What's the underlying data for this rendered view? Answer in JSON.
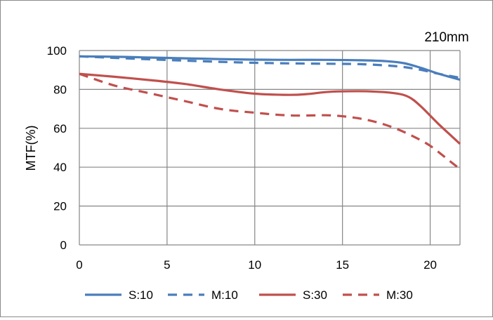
{
  "chart_data": {
    "type": "line",
    "title": "210mm",
    "xlabel": "",
    "ylabel": "MTF(%)",
    "xlim": [
      0,
      21.7
    ],
    "ylim": [
      0,
      100
    ],
    "xticks": [
      0,
      5,
      10,
      15,
      20
    ],
    "yticks": [
      0,
      20,
      40,
      60,
      80,
      100
    ],
    "grid": true,
    "legend_position": "bottom",
    "series": [
      {
        "name": "S:10",
        "color": "#4a7ebb",
        "dash": "solid",
        "points": [
          [
            0,
            97
          ],
          [
            2,
            96.8
          ],
          [
            4,
            96.4
          ],
          [
            6,
            96
          ],
          [
            8,
            95.6
          ],
          [
            10,
            95.3
          ],
          [
            12,
            95.2
          ],
          [
            14,
            95.2
          ],
          [
            16,
            95
          ],
          [
            17.5,
            94.5
          ],
          [
            18.5,
            93.5
          ],
          [
            19.5,
            91
          ],
          [
            20.5,
            88
          ],
          [
            21.7,
            85
          ]
        ]
      },
      {
        "name": "M:10",
        "color": "#4a7ebb",
        "dash": "dashed",
        "points": [
          [
            0,
            97
          ],
          [
            2,
            96.2
          ],
          [
            4,
            95.5
          ],
          [
            6,
            94.8
          ],
          [
            8,
            94.2
          ],
          [
            10,
            93.7
          ],
          [
            12,
            93.4
          ],
          [
            14,
            93.2
          ],
          [
            16,
            93
          ],
          [
            17.5,
            92.3
          ],
          [
            18.5,
            91.5
          ],
          [
            19.5,
            90
          ],
          [
            20.5,
            88
          ],
          [
            21.7,
            86
          ]
        ]
      },
      {
        "name": "S:30",
        "color": "#c0504d",
        "dash": "solid",
        "points": [
          [
            0,
            88
          ],
          [
            2,
            86.5
          ],
          [
            4,
            84.8
          ],
          [
            6,
            82.8
          ],
          [
            8,
            80
          ],
          [
            10,
            77.8
          ],
          [
            12,
            77.2
          ],
          [
            13,
            77.6
          ],
          [
            14,
            78.6
          ],
          [
            15,
            79
          ],
          [
            16.5,
            79
          ],
          [
            18,
            78
          ],
          [
            18.8,
            76
          ],
          [
            19.5,
            71
          ],
          [
            20.5,
            62
          ],
          [
            21.7,
            52
          ]
        ]
      },
      {
        "name": "M:30",
        "color": "#c0504d",
        "dash": "dashed",
        "points": [
          [
            0,
            88
          ],
          [
            2,
            82
          ],
          [
            4,
            78
          ],
          [
            6,
            74
          ],
          [
            8,
            70
          ],
          [
            10,
            68
          ],
          [
            12,
            66.6
          ],
          [
            14,
            66.7
          ],
          [
            15,
            66.2
          ],
          [
            16,
            65
          ],
          [
            17,
            63
          ],
          [
            18,
            60
          ],
          [
            19,
            56
          ],
          [
            20,
            51
          ],
          [
            21,
            44
          ],
          [
            21.7,
            39
          ]
        ]
      }
    ]
  }
}
